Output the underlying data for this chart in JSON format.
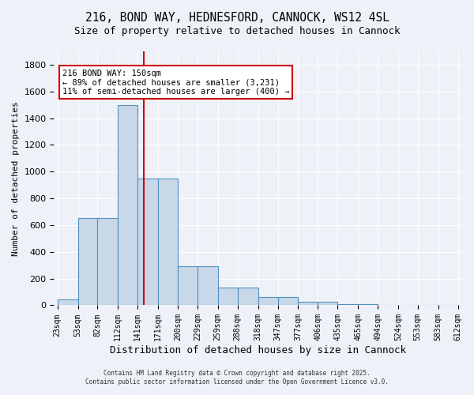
{
  "title_line1": "216, BOND WAY, HEDNESFORD, CANNOCK, WS12 4SL",
  "title_line2": "Size of property relative to detached houses in Cannock",
  "xlabel": "Distribution of detached houses by size in Cannock",
  "ylabel": "Number of detached properties",
  "bar_edges": [
    23,
    53,
    82,
    112,
    141,
    171,
    200,
    229,
    259,
    288,
    318,
    347,
    377,
    406,
    435,
    465,
    494,
    524,
    553,
    583,
    612
  ],
  "bar_heights": [
    45,
    655,
    655,
    1500,
    950,
    950,
    290,
    290,
    130,
    130,
    60,
    60,
    25,
    25,
    10,
    10,
    0,
    0,
    0,
    0
  ],
  "bar_color": "#c8d8e8",
  "bar_edge_color": "#5090c0",
  "bar_edge_width": 0.8,
  "red_line_x": 150,
  "annotation_text": "216 BOND WAY: 150sqm\n← 89% of detached houses are smaller (3,231)\n11% of semi-detached houses are larger (400) →",
  "annotation_box_color": "#ffffff",
  "annotation_border_color": "#cc0000",
  "ylim": [
    0,
    1900
  ],
  "yticks": [
    0,
    200,
    400,
    600,
    800,
    1000,
    1200,
    1400,
    1600,
    1800
  ],
  "background_color": "#eef2f8",
  "grid_color": "#ffffff",
  "footer_line1": "Contains HM Land Registry data © Crown copyright and database right 2025.",
  "footer_line2": "Contains public sector information licensed under the Open Government Licence v3.0.",
  "tick_labels": [
    "23sqm",
    "53sqm",
    "82sqm",
    "112sqm",
    "141sqm",
    "171sqm",
    "200sqm",
    "229sqm",
    "259sqm",
    "288sqm",
    "318sqm",
    "347sqm",
    "377sqm",
    "406sqm",
    "435sqm",
    "465sqm",
    "494sqm",
    "524sqm",
    "553sqm",
    "583sqm",
    "612sqm"
  ]
}
